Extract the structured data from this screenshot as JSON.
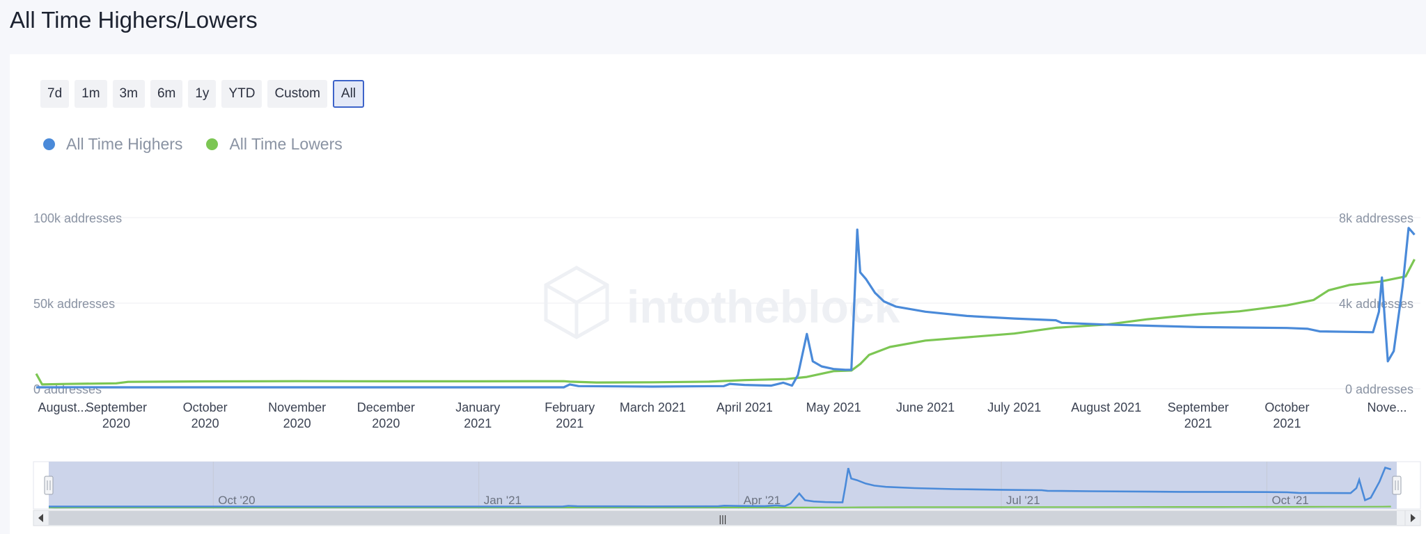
{
  "page": {
    "title": "All Time Highers/Lowers"
  },
  "range_buttons": [
    {
      "label": "7d",
      "active": false
    },
    {
      "label": "1m",
      "active": false
    },
    {
      "label": "3m",
      "active": false
    },
    {
      "label": "6m",
      "active": false
    },
    {
      "label": "1y",
      "active": false
    },
    {
      "label": "YTD",
      "active": false
    },
    {
      "label": "Custom",
      "active": false
    },
    {
      "label": "All",
      "active": true
    }
  ],
  "watermark": "intotheblock",
  "colors": {
    "highers": "#4a8ad9",
    "lowers": "#7cc653",
    "navigator_mask": "#ccd4ea"
  },
  "chart_data": {
    "type": "line",
    "title": "All Time Highers/Lowers",
    "x_type": "date",
    "x_range": [
      "2020-08-05",
      "2021-11-15"
    ],
    "x_tick_labels": [
      [
        "August..."
      ],
      [
        "September",
        "2020"
      ],
      [
        "October",
        "2020"
      ],
      [
        "November",
        "2020"
      ],
      [
        "December",
        "2020"
      ],
      [
        "January",
        "2021"
      ],
      [
        "February",
        "2021"
      ],
      [
        "March 2021"
      ],
      [
        "April 2021"
      ],
      [
        "May 2021"
      ],
      [
        "June 2021"
      ],
      [
        "July 2021"
      ],
      [
        "August 2021"
      ],
      [
        "September",
        "2021"
      ],
      [
        "October",
        "2021"
      ],
      [
        "Nove..."
      ]
    ],
    "x_tick_dates": [
      "2020-08-01",
      "2020-09-01",
      "2020-10-01",
      "2020-11-01",
      "2020-12-01",
      "2021-01-01",
      "2021-02-01",
      "2021-03-01",
      "2021-04-01",
      "2021-05-01",
      "2021-06-01",
      "2021-07-01",
      "2021-08-01",
      "2021-09-01",
      "2021-10-01",
      "2021-11-01"
    ],
    "y_left": {
      "range": [
        0,
        100000
      ],
      "ticks": [
        0,
        50000,
        100000
      ],
      "tick_labels": [
        "0 addresses",
        "50k addresses",
        "100k addresses"
      ]
    },
    "y_right": {
      "range": [
        0,
        8000
      ],
      "ticks": [
        0,
        4000,
        8000
      ],
      "tick_labels": [
        "0 addresses",
        "4k addresses",
        "8k addresses"
      ]
    },
    "grid": true,
    "legend_position": "top-left",
    "series": [
      {
        "name": "All Time Highers",
        "axis": "left",
        "points": [
          [
            "2020-08-05",
            800
          ],
          [
            "2020-09-01",
            800
          ],
          [
            "2020-10-01",
            800
          ],
          [
            "2020-11-01",
            800
          ],
          [
            "2020-12-01",
            800
          ],
          [
            "2021-01-01",
            800
          ],
          [
            "2021-01-30",
            800
          ],
          [
            "2021-02-01",
            2500
          ],
          [
            "2021-02-04",
            1500
          ],
          [
            "2021-03-01",
            1200
          ],
          [
            "2021-03-25",
            1500
          ],
          [
            "2021-03-27",
            2800
          ],
          [
            "2021-04-01",
            2200
          ],
          [
            "2021-04-10",
            1800
          ],
          [
            "2021-04-14",
            3500
          ],
          [
            "2021-04-17",
            1800
          ],
          [
            "2021-04-19",
            8000
          ],
          [
            "2021-04-22",
            32000
          ],
          [
            "2021-04-24",
            16000
          ],
          [
            "2021-04-27",
            13000
          ],
          [
            "2021-05-01",
            11500
          ],
          [
            "2021-05-05",
            11000
          ],
          [
            "2021-05-07",
            11000
          ],
          [
            "2021-05-08",
            50000
          ],
          [
            "2021-05-09",
            93000
          ],
          [
            "2021-05-10",
            68000
          ],
          [
            "2021-05-12",
            64000
          ],
          [
            "2021-05-15",
            56000
          ],
          [
            "2021-05-18",
            51000
          ],
          [
            "2021-05-22",
            48000
          ],
          [
            "2021-06-01",
            45000
          ],
          [
            "2021-06-15",
            42500
          ],
          [
            "2021-07-01",
            41000
          ],
          [
            "2021-07-15",
            40000
          ],
          [
            "2021-07-17",
            38500
          ],
          [
            "2021-08-01",
            37500
          ],
          [
            "2021-09-01",
            36000
          ],
          [
            "2021-10-01",
            35500
          ],
          [
            "2021-10-08",
            35000
          ],
          [
            "2021-10-12",
            33500
          ],
          [
            "2021-10-30",
            33000
          ],
          [
            "2021-11-01",
            45000
          ],
          [
            "2021-11-02",
            65000
          ],
          [
            "2021-11-03",
            40000
          ],
          [
            "2021-11-04",
            16000
          ],
          [
            "2021-11-06",
            22000
          ],
          [
            "2021-11-09",
            60000
          ],
          [
            "2021-11-11",
            94000
          ],
          [
            "2021-11-13",
            90000
          ]
        ]
      },
      {
        "name": "All Time Lowers",
        "axis": "right",
        "points": [
          [
            "2020-08-05",
            700
          ],
          [
            "2020-08-07",
            200
          ],
          [
            "2020-08-15",
            220
          ],
          [
            "2020-09-01",
            250
          ],
          [
            "2020-09-05",
            320
          ],
          [
            "2020-10-01",
            340
          ],
          [
            "2020-11-01",
            350
          ],
          [
            "2020-12-01",
            345
          ],
          [
            "2021-01-01",
            345
          ],
          [
            "2021-01-30",
            350
          ],
          [
            "2021-02-01",
            330
          ],
          [
            "2021-02-10",
            290
          ],
          [
            "2021-03-01",
            300
          ],
          [
            "2021-03-20",
            330
          ],
          [
            "2021-04-01",
            400
          ],
          [
            "2021-04-15",
            450
          ],
          [
            "2021-04-22",
            550
          ],
          [
            "2021-05-01",
            820
          ],
          [
            "2021-05-07",
            850
          ],
          [
            "2021-05-10",
            1150
          ],
          [
            "2021-05-13",
            1580
          ],
          [
            "2021-05-20",
            1950
          ],
          [
            "2021-06-01",
            2250
          ],
          [
            "2021-07-01",
            2580
          ],
          [
            "2021-07-15",
            2850
          ],
          [
            "2021-08-01",
            3000
          ],
          [
            "2021-08-15",
            3250
          ],
          [
            "2021-09-01",
            3480
          ],
          [
            "2021-09-15",
            3620
          ],
          [
            "2021-10-01",
            3900
          ],
          [
            "2021-10-10",
            4150
          ],
          [
            "2021-10-15",
            4600
          ],
          [
            "2021-10-22",
            4850
          ],
          [
            "2021-11-01",
            5000
          ],
          [
            "2021-11-10",
            5250
          ],
          [
            "2021-11-13",
            6050
          ]
        ]
      }
    ],
    "navigator": {
      "tick_labels": [
        "Oct '20",
        "Jan '21",
        "Apr '21",
        "Jul '21",
        "Oct '21"
      ],
      "tick_dates": [
        "2020-10-01",
        "2021-01-01",
        "2021-04-01",
        "2021-07-01",
        "2021-10-01"
      ],
      "scrollbar_grip": "|||"
    }
  }
}
